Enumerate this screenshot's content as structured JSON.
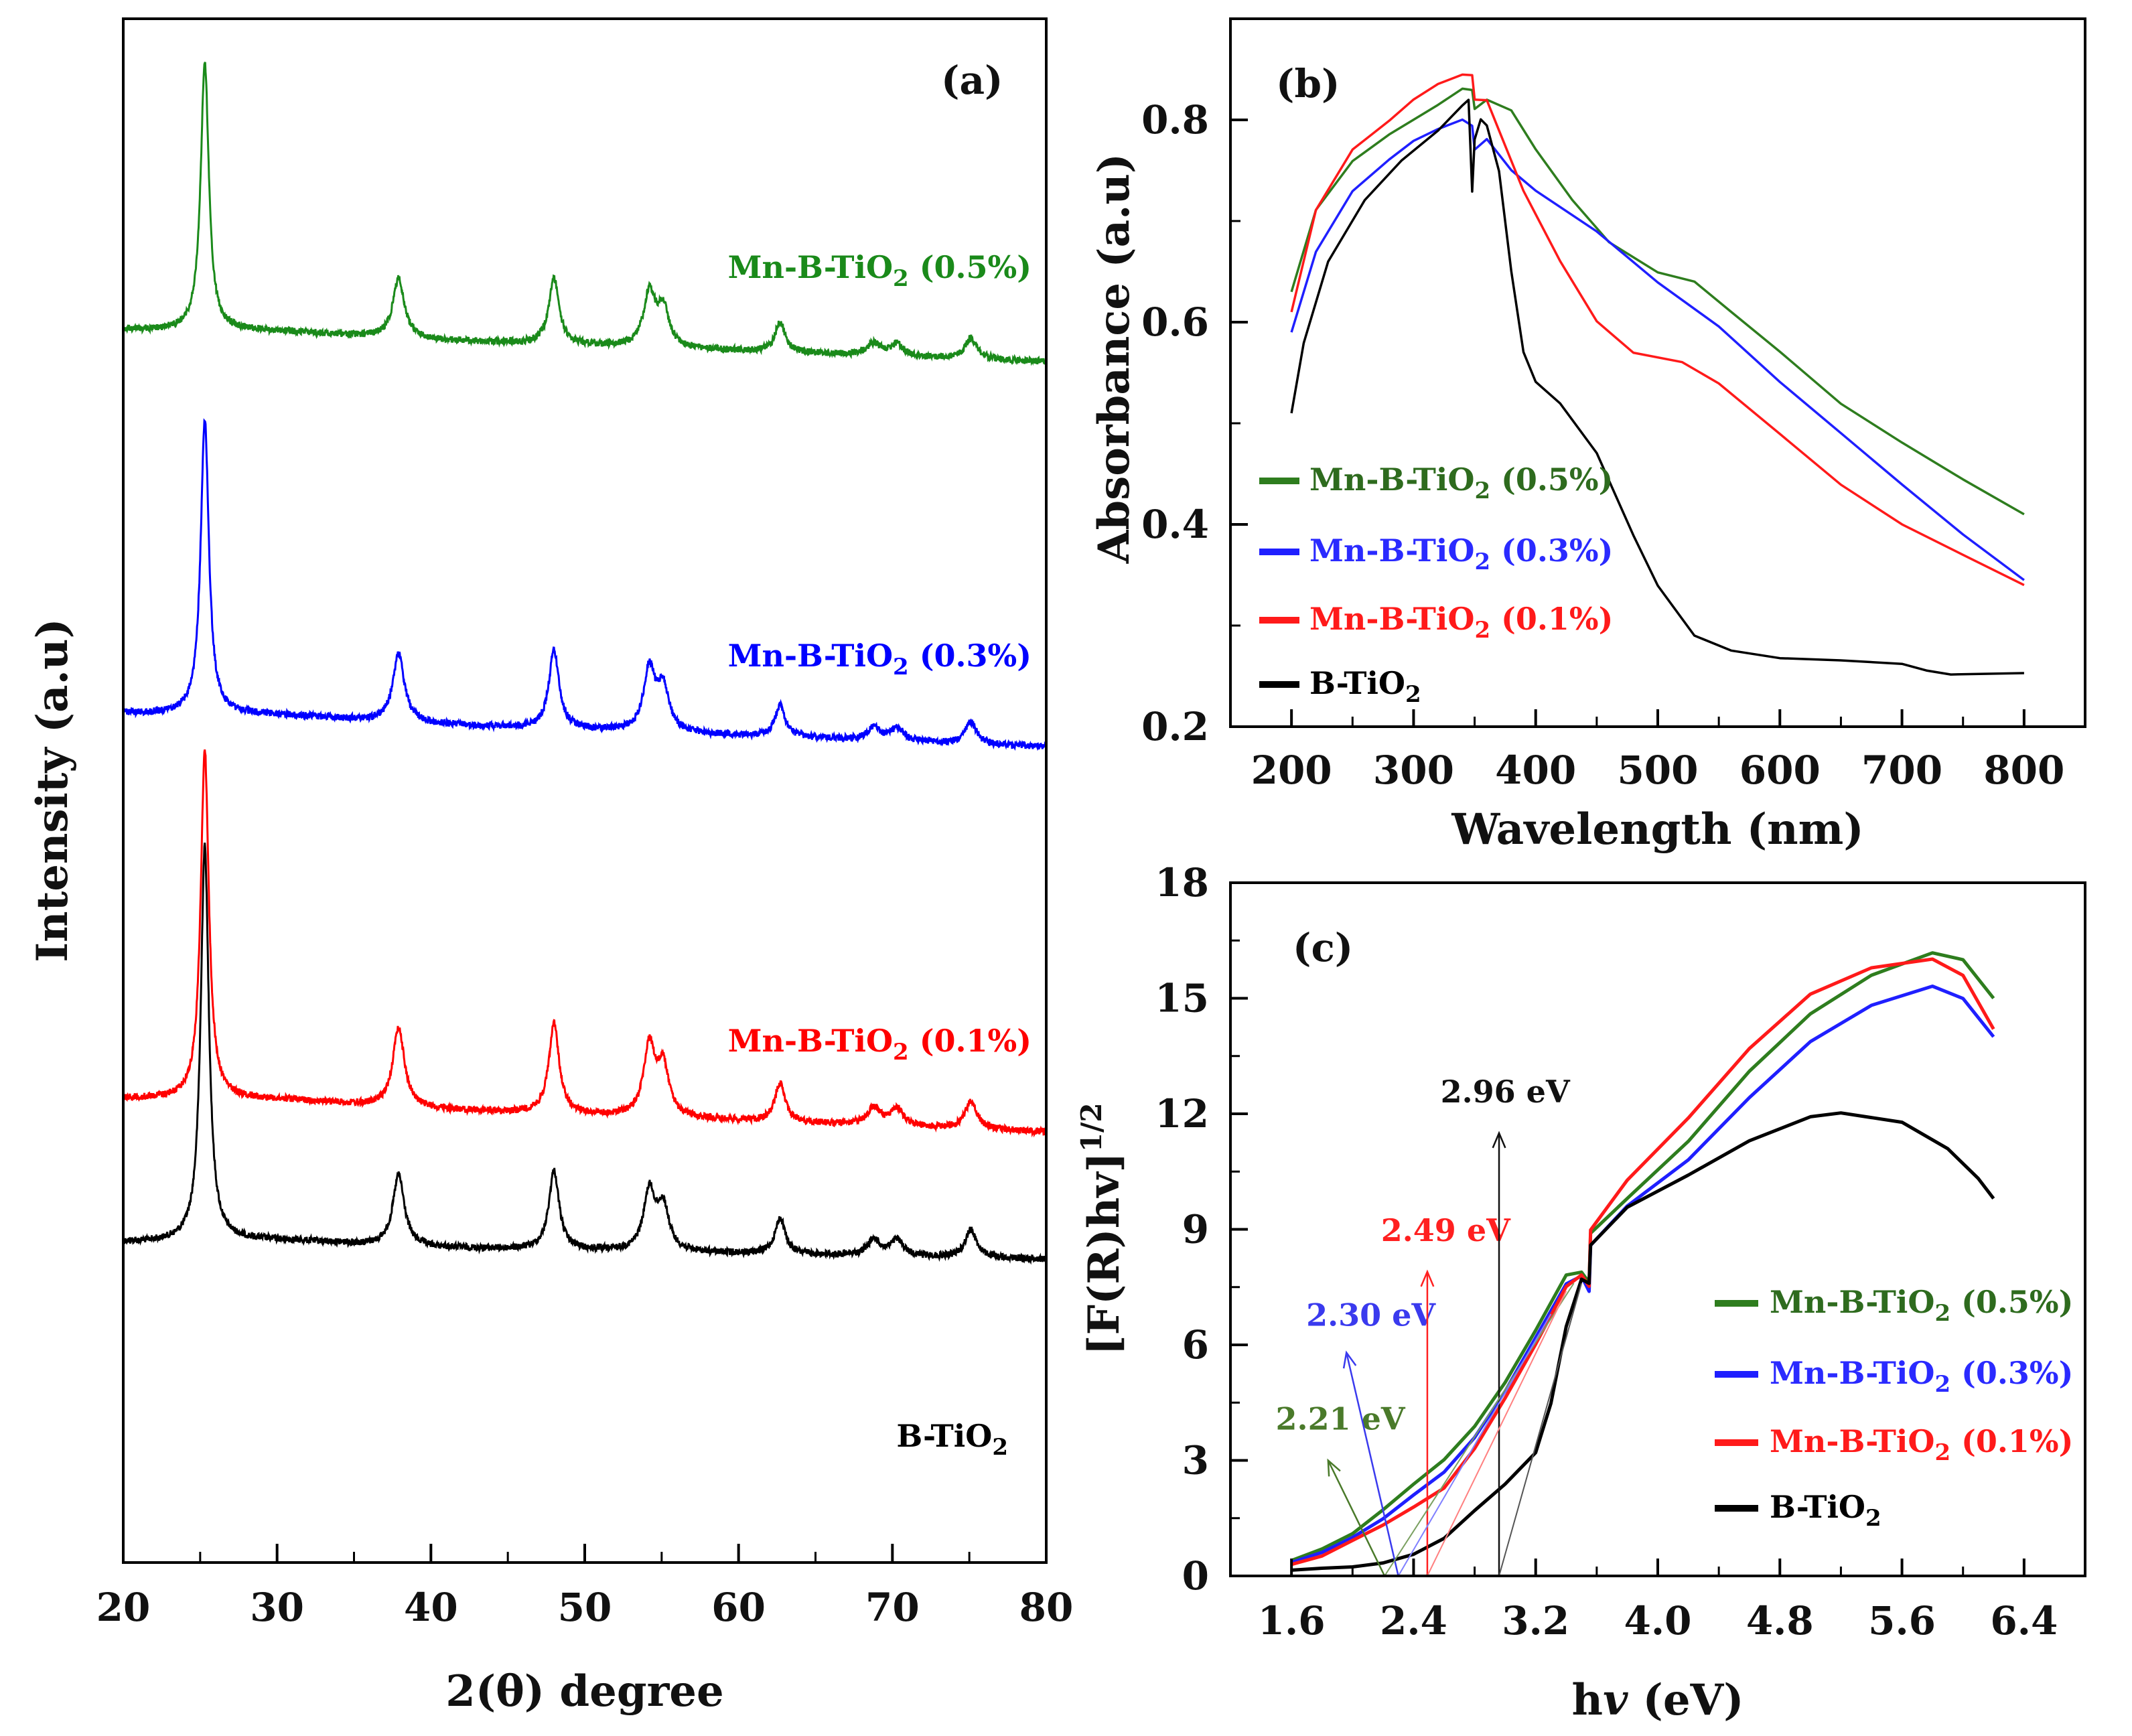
{
  "chart_data": [
    {
      "id": "a",
      "type": "line",
      "panel_label": "(a)",
      "xlabel": "2(θ) degree",
      "ylabel": "Intensity (a.u)",
      "xlim": [
        20,
        80
      ],
      "xticks": [
        20,
        30,
        40,
        50,
        60,
        70,
        80
      ],
      "peak_positions_2theta": [
        25.3,
        37.9,
        48.0,
        54.2,
        55.1,
        62.7,
        68.8,
        70.3,
        75.1
      ],
      "series": [
        {
          "name": "B-TiO2",
          "label_text": "B-TiO",
          "label_sub": "2",
          "label_suffix": "",
          "color": "#000000",
          "peak_heights": [
            1.0,
            0.18,
            0.2,
            0.15,
            0.11,
            0.09,
            0.04,
            0.04,
            0.07
          ]
        },
        {
          "name": "Mn-B-TiO2 (0.1%)",
          "label_text": "Mn-B-TiO",
          "label_sub": "2",
          "label_suffix": " (0.1%)",
          "color": "#ff0000",
          "peak_heights": [
            1.0,
            0.23,
            0.26,
            0.2,
            0.14,
            0.11,
            0.05,
            0.05,
            0.08
          ]
        },
        {
          "name": "Mn-B-TiO2 (0.3%)",
          "label_text": "Mn-B-TiO",
          "label_sub": "2",
          "label_suffix": " (0.3%)",
          "color": "#0000ff",
          "peak_heights": [
            0.95,
            0.22,
            0.25,
            0.2,
            0.14,
            0.1,
            0.04,
            0.04,
            0.07
          ]
        },
        {
          "name": "Mn-B-TiO2 (0.5%)",
          "label_text": "Mn-B-TiO",
          "label_sub": "2",
          "label_suffix": " (0.5%)",
          "color": "#1a8a1a",
          "peak_heights": [
            0.9,
            0.2,
            0.22,
            0.18,
            0.13,
            0.1,
            0.04,
            0.04,
            0.07
          ]
        }
      ]
    },
    {
      "id": "b",
      "type": "line",
      "panel_label": "(b)",
      "xlabel": "Wavelength (nm)",
      "ylabel": "Absorbance (a.u)",
      "xlim": [
        150,
        850
      ],
      "ylim": [
        0.2,
        0.9
      ],
      "xticks": [
        200,
        300,
        400,
        500,
        600,
        700,
        800
      ],
      "yticks": [
        0.2,
        0.4,
        0.6,
        0.8
      ],
      "ytick_labels": [
        "0.2",
        "0.4",
        "0.6",
        "0.8"
      ],
      "series": [
        {
          "name": "Mn-B-TiO2 (0.5%)",
          "label_text": "Mn-B-TiO",
          "label_sub": "2",
          "label_suffix": " (0.5%)",
          "color": "#2e7d1e",
          "label_color": "#2e6b1e",
          "x": [
            200,
            220,
            250,
            280,
            300,
            320,
            340,
            348,
            350,
            360,
            380,
            400,
            430,
            460,
            500,
            530,
            560,
            600,
            650,
            700,
            750,
            800
          ],
          "y": [
            0.63,
            0.71,
            0.76,
            0.785,
            0.8,
            0.815,
            0.83,
            0.83,
            0.81,
            0.82,
            0.81,
            0.77,
            0.72,
            0.68,
            0.65,
            0.64,
            0.61,
            0.57,
            0.52,
            0.48,
            0.445,
            0.41
          ]
        },
        {
          "name": "Mn-B-TiO2 (0.3%)",
          "label_text": "Mn-B-TiO",
          "label_sub": "2",
          "label_suffix": " (0.3%)",
          "color": "#1f1fff",
          "label_color": "#2a2aff",
          "x": [
            200,
            220,
            250,
            280,
            300,
            320,
            340,
            348,
            350,
            360,
            380,
            400,
            450,
            500,
            550,
            600,
            650,
            700,
            750,
            800
          ],
          "y": [
            0.59,
            0.67,
            0.73,
            0.76,
            0.78,
            0.79,
            0.8,
            0.795,
            0.77,
            0.78,
            0.75,
            0.73,
            0.69,
            0.64,
            0.595,
            0.54,
            0.49,
            0.44,
            0.39,
            0.345
          ]
        },
        {
          "name": "Mn-B-TiO2 (0.1%)",
          "label_text": "Mn-B-TiO",
          "label_sub": "2",
          "label_suffix": " (0.1%)",
          "color": "#ff1a1a",
          "label_color": "#ff1a1a",
          "x": [
            200,
            220,
            250,
            280,
            300,
            320,
            340,
            348,
            350,
            360,
            370,
            390,
            420,
            450,
            480,
            520,
            550,
            600,
            650,
            700,
            750,
            800
          ],
          "y": [
            0.61,
            0.71,
            0.77,
            0.8,
            0.82,
            0.835,
            0.845,
            0.845,
            0.82,
            0.82,
            0.79,
            0.73,
            0.66,
            0.6,
            0.57,
            0.56,
            0.54,
            0.49,
            0.44,
            0.4,
            0.37,
            0.34
          ]
        },
        {
          "name": "B-TiO2",
          "label_text": "B-TiO",
          "label_sub": "2",
          "label_suffix": "",
          "color": "#000000",
          "label_color": "#000000",
          "x": [
            200,
            210,
            230,
            260,
            290,
            320,
            340,
            345,
            348,
            350,
            355,
            360,
            370,
            380,
            390,
            400,
            420,
            450,
            480,
            500,
            530,
            560,
            600,
            650,
            700,
            720,
            740,
            800
          ],
          "y": [
            0.51,
            0.58,
            0.66,
            0.72,
            0.76,
            0.79,
            0.815,
            0.82,
            0.73,
            0.78,
            0.8,
            0.795,
            0.75,
            0.65,
            0.57,
            0.54,
            0.52,
            0.47,
            0.39,
            0.34,
            0.29,
            0.275,
            0.268,
            0.265,
            0.262,
            0.255,
            0.252,
            0.253
          ]
        }
      ]
    },
    {
      "id": "c",
      "type": "line",
      "panel_label": "(c)",
      "xlabel": "hv (eV)",
      "xlabel_main": "h",
      "xlabel_italic": "v",
      "xlabel_units": " (eV)",
      "ylabel": "[F(R)hv]1/2",
      "ylabel_main": "[F(R)hv]",
      "ylabel_sup": "1/2",
      "xlim": [
        1.2,
        6.8
      ],
      "ylim": [
        0,
        18
      ],
      "xticks": [
        1.6,
        2.4,
        3.2,
        4.0,
        4.8,
        5.6,
        6.4
      ],
      "xtick_labels": [
        "1.6",
        "2.4",
        "3.2",
        "4.0",
        "4.8",
        "5.6",
        "6.4"
      ],
      "yticks": [
        0,
        3,
        6,
        9,
        12,
        15,
        18
      ],
      "series": [
        {
          "name": "Mn-B-TiO2 (0.5%)",
          "label_text": "Mn-B-TiO",
          "label_sub": "2",
          "label_suffix": " (0.5%)",
          "color": "#2e7d1e",
          "label_color": "#2e6b1e",
          "x": [
            1.6,
            1.8,
            2.0,
            2.2,
            2.4,
            2.6,
            2.8,
            3.0,
            3.2,
            3.4,
            3.5,
            3.55,
            3.56,
            3.8,
            4.2,
            4.6,
            5.0,
            5.4,
            5.8,
            6.0,
            6.2
          ],
          "y": [
            0.4,
            0.7,
            1.1,
            1.7,
            2.4,
            3.0,
            3.9,
            5.0,
            6.4,
            7.8,
            7.9,
            7.6,
            8.9,
            9.8,
            11.3,
            13.1,
            14.6,
            15.6,
            16.2,
            16.0,
            15.0
          ]
        },
        {
          "name": "Mn-B-TiO2 (0.3%)",
          "label_text": "Mn-B-TiO",
          "label_sub": "2",
          "label_suffix": " (0.3%)",
          "color": "#1f1fff",
          "label_color": "#2a2aff",
          "x": [
            1.6,
            1.8,
            2.0,
            2.2,
            2.4,
            2.6,
            2.8,
            3.0,
            3.2,
            3.4,
            3.5,
            3.55,
            3.56,
            3.8,
            4.2,
            4.6,
            5.0,
            5.4,
            5.8,
            6.0,
            6.2
          ],
          "y": [
            0.35,
            0.6,
            1.0,
            1.5,
            2.1,
            2.7,
            3.6,
            4.8,
            6.2,
            7.6,
            7.8,
            7.4,
            8.6,
            9.6,
            10.8,
            12.4,
            13.9,
            14.8,
            15.3,
            15.0,
            14.0
          ]
        },
        {
          "name": "Mn-B-TiO2 (0.1%)",
          "label_text": "Mn-B-TiO",
          "label_sub": "2",
          "label_suffix": " (0.1%)",
          "color": "#ff1a1a",
          "label_color": "#ff1a1a",
          "x": [
            1.6,
            1.8,
            2.0,
            2.2,
            2.4,
            2.6,
            2.8,
            3.0,
            3.2,
            3.4,
            3.5,
            3.55,
            3.56,
            3.8,
            4.2,
            4.6,
            5.0,
            5.4,
            5.8,
            6.0,
            6.2
          ],
          "y": [
            0.3,
            0.5,
            0.9,
            1.3,
            1.8,
            2.3,
            3.3,
            4.6,
            6.0,
            7.5,
            7.8,
            7.5,
            9.0,
            10.3,
            11.9,
            13.7,
            15.1,
            15.8,
            16.0,
            15.6,
            14.2
          ]
        },
        {
          "name": "B-TiO2",
          "label_text": "B-TiO",
          "label_sub": "2",
          "label_suffix": "",
          "color": "#000000",
          "label_color": "#000000",
          "x": [
            1.6,
            1.8,
            2.0,
            2.2,
            2.4,
            2.6,
            2.8,
            3.0,
            3.2,
            3.3,
            3.4,
            3.5,
            3.55,
            3.56,
            3.8,
            4.2,
            4.6,
            5.0,
            5.2,
            5.6,
            5.9,
            6.1,
            6.2
          ],
          "y": [
            0.15,
            0.2,
            0.25,
            0.35,
            0.55,
            1.0,
            1.7,
            2.4,
            3.2,
            4.5,
            6.5,
            7.7,
            7.6,
            8.6,
            9.6,
            10.4,
            11.3,
            11.9,
            12.0,
            11.8,
            11.1,
            10.3,
            9.8
          ]
        }
      ],
      "annotations": [
        {
          "text": "2.21 eV",
          "color": "#4a7a2a",
          "base_x": 2.21,
          "tip_x": 1.84,
          "tip_y": 3.0,
          "label_x": 1.92,
          "label_y": 3.8
        },
        {
          "text": "2.30 eV",
          "color": "#3a3aee",
          "base_x": 2.3,
          "tip_x": 1.96,
          "tip_y": 5.8,
          "label_x": 2.12,
          "label_y": 6.5
        },
        {
          "text": "2.49 eV",
          "color": "#ff2020",
          "base_x": 2.49,
          "tip_x": 2.49,
          "tip_y": 7.9,
          "label_x": 2.61,
          "label_y": 8.7
        },
        {
          "text": "2.96 eV",
          "color": "#111111",
          "base_x": 2.96,
          "tip_x": 2.96,
          "tip_y": 11.5,
          "label_x": 3.0,
          "label_y": 12.3
        }
      ]
    }
  ]
}
